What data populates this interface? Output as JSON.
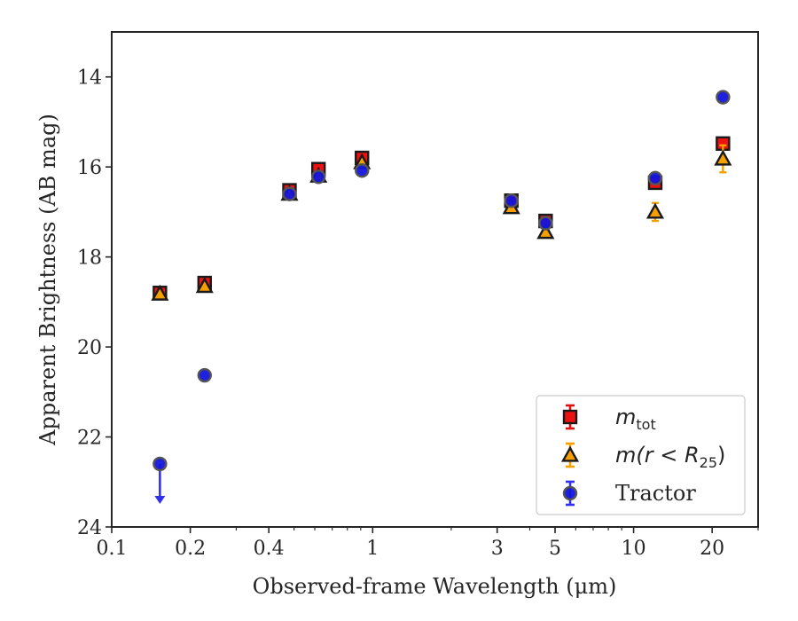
{
  "chart_data": {
    "type": "scatter",
    "xscale": "log",
    "yinverted": true,
    "xlim": [
      0.1,
      30
    ],
    "ylim": [
      24,
      13
    ],
    "xlabel": "Observed-frame Wavelength (μm)",
    "ylabel": "Apparent Brightness (AB mag)",
    "xticks": [
      0.1,
      0.2,
      0.4,
      1,
      3,
      5,
      10,
      20
    ],
    "xtick_labels": [
      "0.1",
      "0.2",
      "0.4",
      "1",
      "3",
      "5",
      "10",
      "20"
    ],
    "yticks": [
      14,
      16,
      18,
      20,
      22,
      24
    ],
    "ytick_labels": [
      "14",
      "16",
      "18",
      "20",
      "22",
      "24"
    ],
    "grid": false,
    "legend_position": "lower-right",
    "series": [
      {
        "name": "m_tot",
        "legend_main": "m",
        "legend_sub": "tot",
        "marker": "square",
        "color": "#ee1111",
        "errcolor": "#dd1111",
        "x": [
          0.153,
          0.227,
          0.48,
          0.62,
          0.91,
          3.4,
          4.6,
          12.1,
          22.0
        ],
        "y": [
          18.8,
          18.58,
          16.52,
          16.05,
          15.8,
          16.75,
          17.2,
          16.35,
          15.48
        ],
        "err": [
          0.12,
          0.12,
          0.12,
          0.12,
          0.12,
          0.1,
          0.1,
          0.12,
          0.1
        ]
      },
      {
        "name": "m(r<R_25)",
        "legend_main": "m(r < R",
        "legend_sub": "25",
        "legend_close": ")",
        "marker": "triangle",
        "color": "#f5a000",
        "errcolor": "#f5a000",
        "x": [
          0.153,
          0.227,
          0.48,
          0.62,
          0.91,
          3.4,
          4.6,
          12.1,
          22.0
        ],
        "y": [
          18.82,
          18.65,
          16.6,
          16.2,
          15.9,
          16.9,
          17.45,
          17.0,
          15.82
        ],
        "err": [
          0.05,
          0.05,
          0.05,
          0.05,
          0.05,
          0.05,
          0.05,
          0.2,
          0.3
        ]
      },
      {
        "name": "Tractor",
        "legend_main": "Tractor",
        "marker": "circle",
        "color": "#1414dd",
        "errcolor": "#3030ee",
        "x": [
          0.153,
          0.227,
          0.48,
          0.62,
          0.91,
          3.4,
          4.6,
          12.1,
          22.0
        ],
        "y": [
          22.6,
          20.63,
          16.6,
          16.22,
          16.08,
          16.75,
          17.25,
          16.25,
          14.45
        ],
        "err": [
          0,
          0,
          0,
          0,
          0,
          0,
          0,
          0,
          0
        ],
        "upper_limit_index": 0
      }
    ]
  }
}
